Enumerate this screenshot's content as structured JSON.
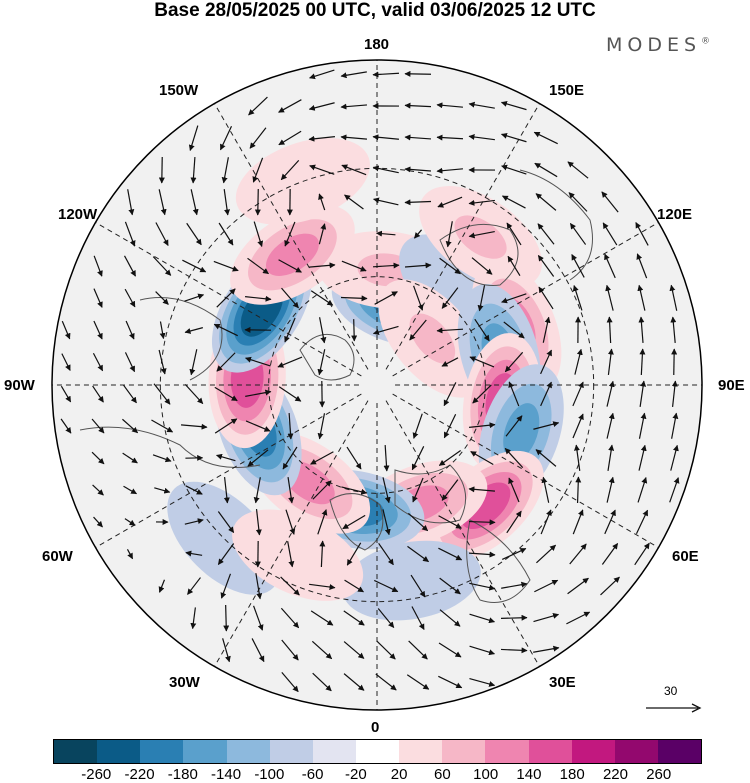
{
  "title": "Base 28/05/2025 00 UTC, valid 03/06/2025 12 UTC",
  "brand": "MODES",
  "brand_mark": "®",
  "longitude_labels": {
    "top": "180",
    "top_left": "150W",
    "top_right": "150E",
    "upper_left": "120W",
    "upper_right": "120E",
    "left": "90W",
    "right": "90E",
    "lower_left": "60W",
    "lower_right": "60E",
    "bottom_left": "30W",
    "bottom_right": "30E",
    "bottom": "0"
  },
  "reference_vector": {
    "value": "30"
  },
  "colorbar": {
    "colors": [
      "#08445e",
      "#0b5b87",
      "#2a7fb3",
      "#5aa0cc",
      "#8db9dd",
      "#c0cde6",
      "#e3e4f1",
      "#ffffff",
      "#fbdde0",
      "#f6b7c7",
      "#ef85b0",
      "#e0509a",
      "#c2187f",
      "#93086e",
      "#5a0066"
    ],
    "ticks": [
      "-260",
      "-220",
      "-180",
      "-140",
      "-100",
      "-60",
      "-20",
      "20",
      "60",
      "100",
      "140",
      "180",
      "220",
      "260"
    ]
  },
  "anomalies": [
    {
      "lon": 164,
      "lat": 67,
      "value": -180
    },
    {
      "lon": 175,
      "lat": 58,
      "value": 100
    },
    {
      "lon": 140,
      "lat": 55,
      "value": -60
    },
    {
      "lon": 145,
      "lat": 40,
      "value": 100
    },
    {
      "lon": 130,
      "lat": 70,
      "value": 100
    },
    {
      "lon": 113,
      "lat": 48,
      "value": 140
    },
    {
      "lon": 105,
      "lat": 55,
      "value": -140
    },
    {
      "lon": 82,
      "lat": 55,
      "value": 180
    },
    {
      "lon": 72,
      "lat": 48,
      "value": -140
    },
    {
      "lon": 42,
      "lat": 45,
      "value": 180
    },
    {
      "lon": 20,
      "lat": 55,
      "value": 140
    },
    {
      "lon": 10,
      "lat": 35,
      "value": -60
    },
    {
      "lon": -10,
      "lat": 55,
      "value": -180
    },
    {
      "lon": -35,
      "lat": 57,
      "value": 140
    },
    {
      "lon": -70,
      "lat": 55,
      "value": -180
    },
    {
      "lon": -93,
      "lat": 54,
      "value": 180
    },
    {
      "lon": -123,
      "lat": 52,
      "value": -220
    },
    {
      "lon": -147,
      "lat": 47,
      "value": 140
    },
    {
      "lon": -160,
      "lat": 30,
      "value": 60
    },
    {
      "lon": -45,
      "lat": 30,
      "value": -60
    },
    {
      "lon": -25,
      "lat": 38,
      "value": 60
    },
    {
      "lon": 157,
      "lat": 35,
      "value": -20
    }
  ]
}
